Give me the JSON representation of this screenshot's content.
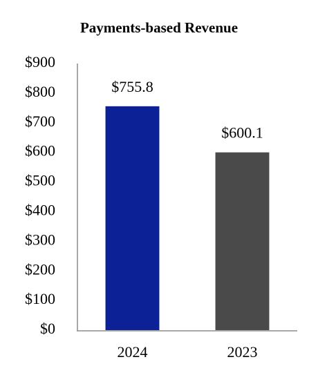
{
  "chart_data": {
    "type": "bar",
    "title": "Payments-based Revenue",
    "categories": [
      "2024",
      "2023"
    ],
    "values": [
      755.8,
      600.1
    ],
    "value_labels": [
      "$755.8",
      "$600.1"
    ],
    "colors": [
      "#0c2196",
      "#4a4a4a"
    ],
    "ylim": [
      0,
      900
    ],
    "yticks": [
      {
        "value": 0,
        "label": "$0"
      },
      {
        "value": 100,
        "label": "$100"
      },
      {
        "value": 200,
        "label": "$200"
      },
      {
        "value": 300,
        "label": "$300"
      },
      {
        "value": 400,
        "label": "$400"
      },
      {
        "value": 500,
        "label": "$500"
      },
      {
        "value": 600,
        "label": "$600"
      },
      {
        "value": 700,
        "label": "$700"
      },
      {
        "value": 800,
        "label": "$800"
      },
      {
        "value": 900,
        "label": "$900"
      }
    ],
    "grid": false
  }
}
